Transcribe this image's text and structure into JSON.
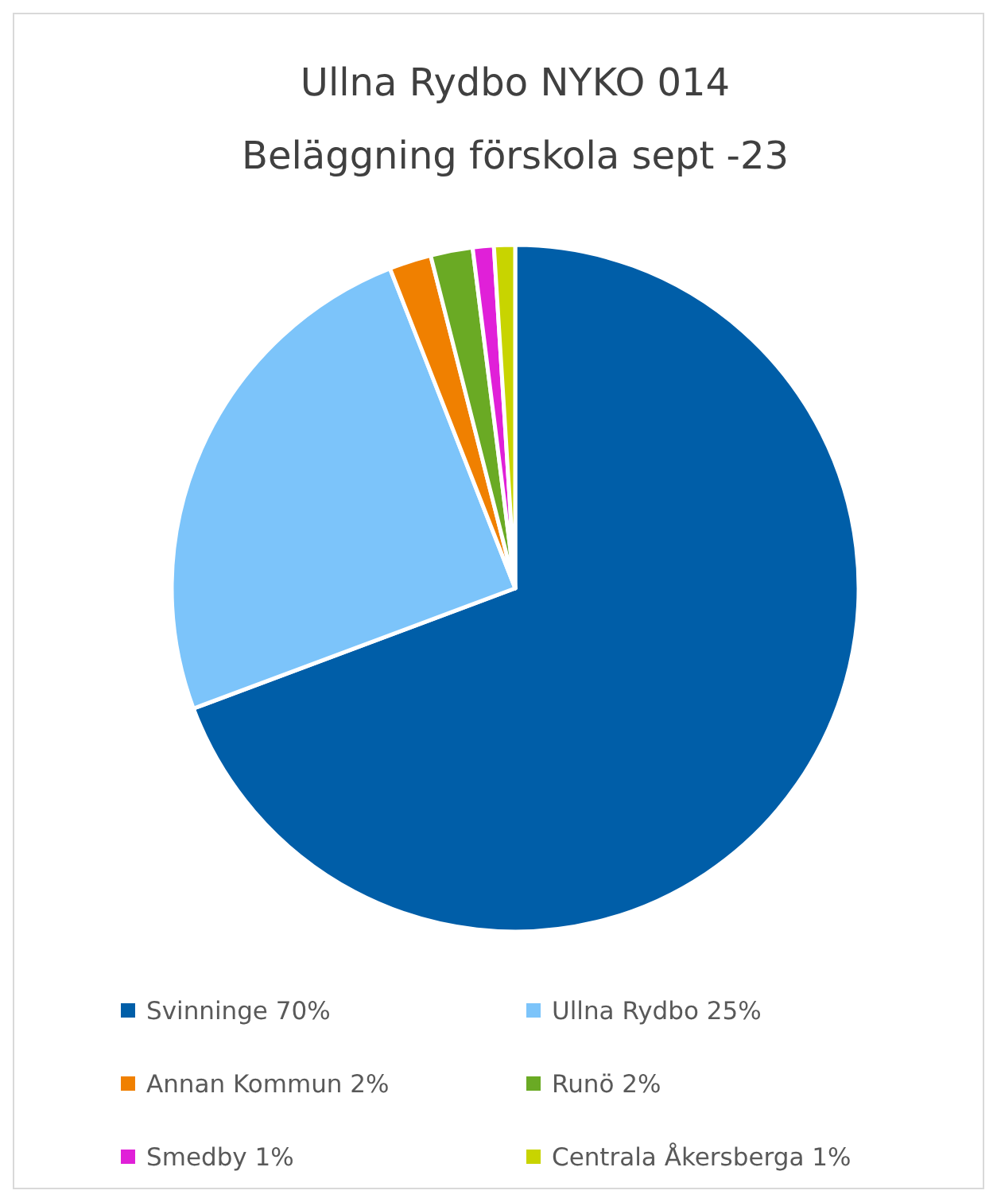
{
  "chart_data": {
    "type": "pie",
    "title": "Ullna Rydbo NYKO 014\nBeläggning förskola sept -23",
    "categories": [
      "Svinninge",
      "Ullna Rydbo",
      "Annan Kommun",
      "Runö",
      "Smedby",
      "Centrala Åkersberga"
    ],
    "values": [
      70,
      25,
      2,
      2,
      1,
      1
    ],
    "value_labels": [
      "70%",
      "25%",
      "2%",
      "2%",
      "1%",
      "1%"
    ],
    "colors": [
      "#005ea8",
      "#7cc4fa",
      "#f08000",
      "#6aaa24",
      "#e020d8",
      "#c8d400"
    ],
    "legend": "bottom"
  }
}
